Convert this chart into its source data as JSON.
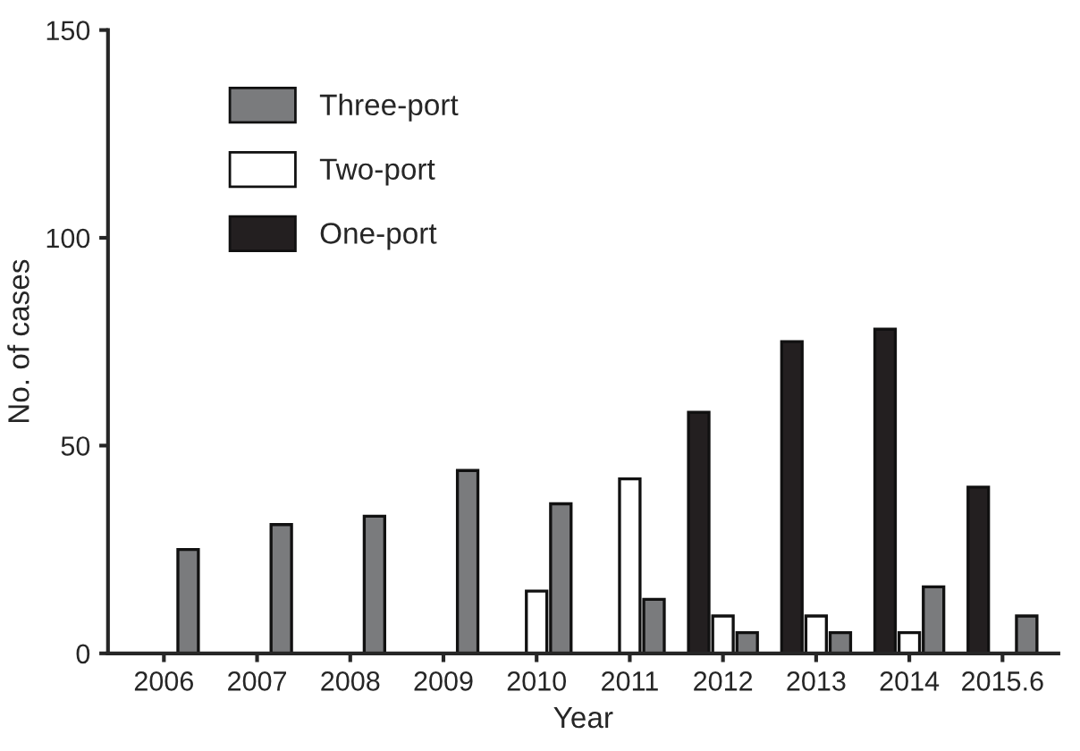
{
  "chart_data": {
    "type": "bar",
    "xlabel": "Year",
    "ylabel": "No. of cases",
    "categories": [
      "2006",
      "2007",
      "2008",
      "2009",
      "2010",
      "2011",
      "2012",
      "2013",
      "2014",
      "2015.6"
    ],
    "series": [
      {
        "name": "One-port",
        "color": "#231f20",
        "values": [
          null,
          null,
          null,
          null,
          null,
          null,
          58,
          75,
          78,
          40
        ]
      },
      {
        "name": "Two-port",
        "color": "#ffffff",
        "values": [
          null,
          null,
          null,
          null,
          15,
          42,
          9,
          9,
          5,
          null
        ]
      },
      {
        "name": "Three-port",
        "color": "#7a7b7d",
        "values": [
          25,
          31,
          33,
          44,
          36,
          13,
          5,
          5,
          16,
          9
        ]
      }
    ],
    "ylim": [
      0,
      150
    ],
    "yticks": [
      0,
      50,
      100,
      150
    ],
    "grid": false,
    "legend": "top left"
  }
}
